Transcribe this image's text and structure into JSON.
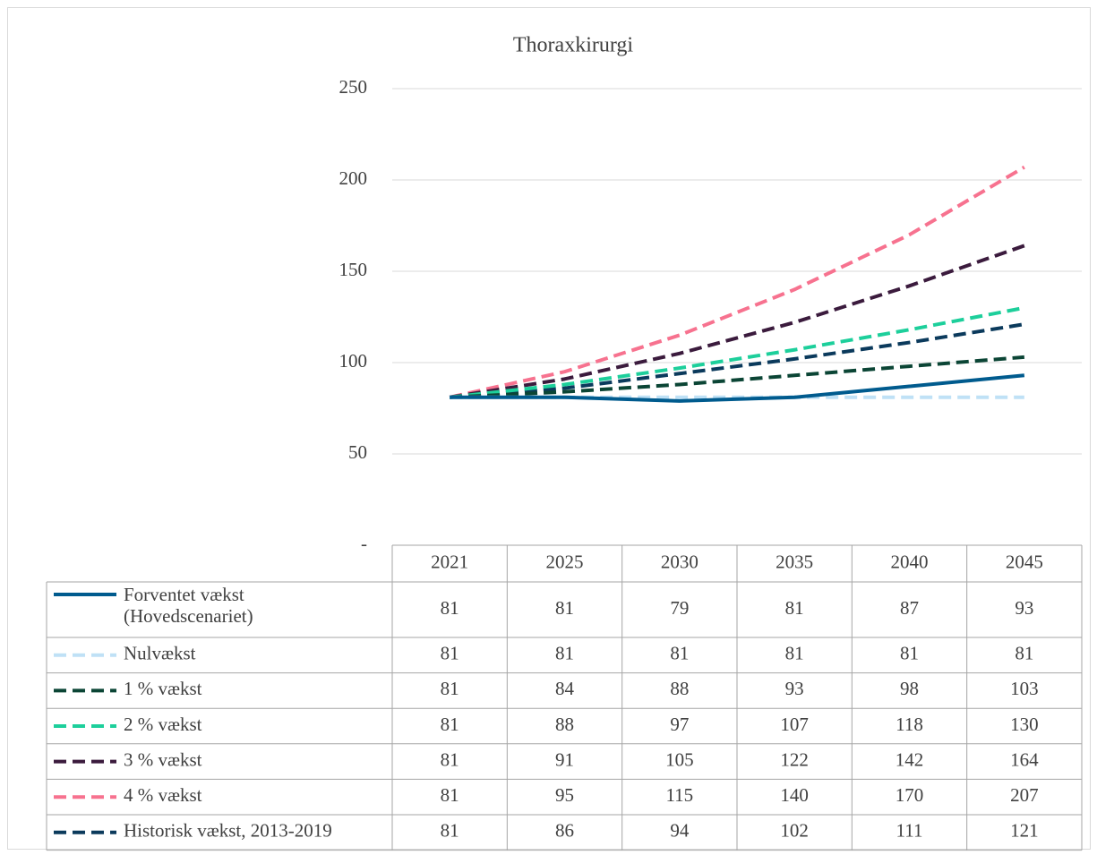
{
  "chart_data": {
    "type": "line",
    "title": "Thoraxkirurgi",
    "categories": [
      "2021",
      "2025",
      "2030",
      "2035",
      "2040",
      "2045"
    ],
    "series": [
      {
        "name": "Forventet vækst (Hovedscenariet)",
        "color": "#005b8e",
        "dashed": false,
        "values": [
          81,
          81,
          79,
          81,
          87,
          93
        ]
      },
      {
        "name": "Nulvækst",
        "color": "#bfe1f6",
        "dashed": true,
        "values": [
          81,
          81,
          81,
          81,
          81,
          81
        ]
      },
      {
        "name": "1 % vækst",
        "color": "#0b4535",
        "dashed": true,
        "values": [
          81,
          84,
          88,
          93,
          98,
          103
        ]
      },
      {
        "name": "2 % vækst",
        "color": "#1dcf9b",
        "dashed": true,
        "values": [
          81,
          88,
          97,
          107,
          118,
          130
        ]
      },
      {
        "name": "3 % vækst",
        "color": "#3b1b3d",
        "dashed": true,
        "values": [
          81,
          91,
          105,
          122,
          142,
          164
        ]
      },
      {
        "name": "4 % vækst",
        "color": "#f7728f",
        "dashed": true,
        "values": [
          81,
          95,
          115,
          140,
          170,
          207
        ]
      },
      {
        "name": "Historisk vækst, 2013-2019",
        "color": "#0b3a5c",
        "dashed": true,
        "values": [
          81,
          86,
          94,
          102,
          111,
          121
        ]
      }
    ],
    "ylim": [
      0,
      250
    ],
    "yticks": [
      {
        "value": 0,
        "label": "-"
      },
      50,
      100,
      150,
      200,
      250
    ],
    "grid": true
  }
}
